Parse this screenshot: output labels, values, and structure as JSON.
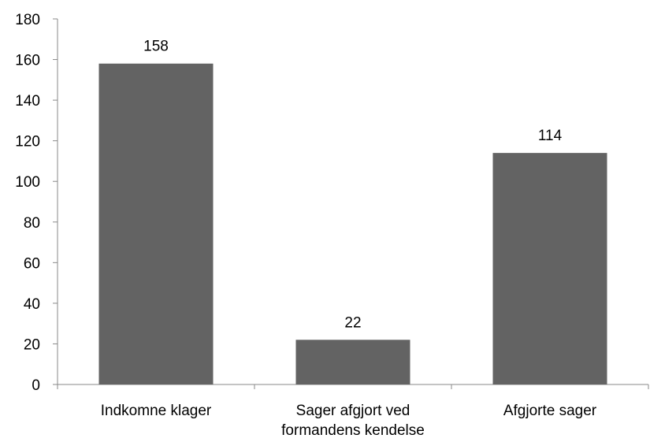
{
  "chart_data": {
    "type": "bar",
    "title": "",
    "xlabel": "",
    "ylabel": "",
    "categories": [
      [
        "Indkomne klager"
      ],
      [
        "Sager afgjort ved",
        "formandens kendelse"
      ],
      [
        "Afgjorte sager"
      ]
    ],
    "values": [
      158,
      22,
      114
    ],
    "data_labels": [
      "158",
      "22",
      "114"
    ],
    "ylim": [
      0,
      180
    ],
    "yticks": [
      0,
      20,
      40,
      60,
      80,
      100,
      120,
      140,
      160,
      180
    ],
    "grid": false,
    "legend": "none",
    "bar_color": "#636363",
    "axis_color": "#898989"
  }
}
